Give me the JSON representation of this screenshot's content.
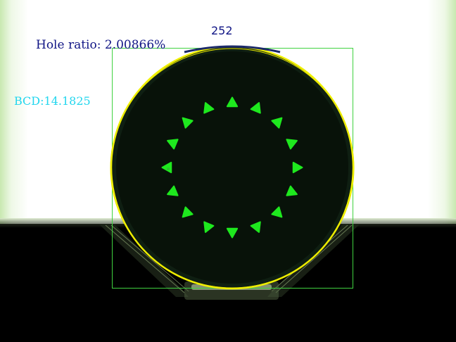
{
  "measurement": {
    "hole_ratio_label": "Hole ratio: 2.00866%",
    "bcd_label": "BCD:14.1825",
    "count_label": "252"
  },
  "colors": {
    "fiber_outline": "#f0f000",
    "bounding_box": "#3fd23f",
    "holes": "#1ee81e",
    "hole_ratio_text": "#101585",
    "bcd_text": "#22d6ee"
  },
  "holes": {
    "count": 16
  }
}
